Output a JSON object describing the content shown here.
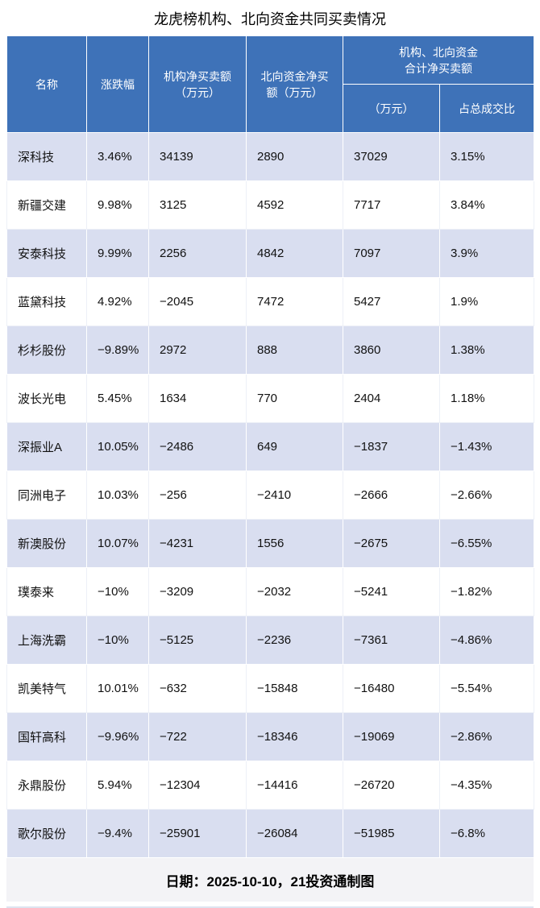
{
  "title": "龙虎榜机构、北向资金共同买卖情况",
  "footer": "日期：2025-10-10，21投资通制图",
  "colors": {
    "header_bg": "#3E72B8",
    "row_shade": "#D9DEF0",
    "footer_bg": "#F3F3F6"
  },
  "chart_data": {
    "type": "table",
    "title": "龙虎榜机构、北向资金共同买卖情况",
    "header": {
      "name": "名称",
      "change": "涨跌幅",
      "inst_net_line1": "机构净买卖额",
      "inst_net_line2": "（万元）",
      "north_net_line1": "北向资金净买",
      "north_net_line2": "额（万元）",
      "group_line1": "机构、北向资金",
      "group_line2": "合计净买卖额",
      "sub_amount": "（万元）",
      "sub_ratio": "占总成交比"
    },
    "rows": [
      [
        "深科技",
        "3.46%",
        "34139",
        "2890",
        "37029",
        "3.15%"
      ],
      [
        "新疆交建",
        "9.98%",
        "3125",
        "4592",
        "7717",
        "3.84%"
      ],
      [
        "安泰科技",
        "9.99%",
        "2256",
        "4842",
        "7097",
        "3.9%"
      ],
      [
        "蓝黛科技",
        "4.92%",
        "−2045",
        "7472",
        "5427",
        "1.9%"
      ],
      [
        "杉杉股份",
        "−9.89%",
        "2972",
        "888",
        "3860",
        "1.38%"
      ],
      [
        "波长光电",
        "5.45%",
        "1634",
        "770",
        "2404",
        "1.18%"
      ],
      [
        "深振业A",
        "10.05%",
        "−2486",
        "649",
        "−1837",
        "−1.43%"
      ],
      [
        "同洲电子",
        "10.03%",
        "−256",
        "−2410",
        "−2666",
        "−2.66%"
      ],
      [
        "新澳股份",
        "10.07%",
        "−4231",
        "1556",
        "−2675",
        "−6.55%"
      ],
      [
        "璞泰来",
        "−10%",
        "−3209",
        "−2032",
        "−5241",
        "−1.82%"
      ],
      [
        "上海洗霸",
        "−10%",
        "−5125",
        "−2236",
        "−7361",
        "−4.86%"
      ],
      [
        "凯美特气",
        "10.01%",
        "−632",
        "−15848",
        "−16480",
        "−5.54%"
      ],
      [
        "国轩高科",
        "−9.96%",
        "−722",
        "−18346",
        "−19069",
        "−2.86%"
      ],
      [
        "永鼎股份",
        "5.94%",
        "−12304",
        "−14416",
        "−26720",
        "−4.35%"
      ],
      [
        "歌尔股份",
        "−9.4%",
        "−25901",
        "−26084",
        "−51985",
        "−6.8%"
      ]
    ]
  }
}
